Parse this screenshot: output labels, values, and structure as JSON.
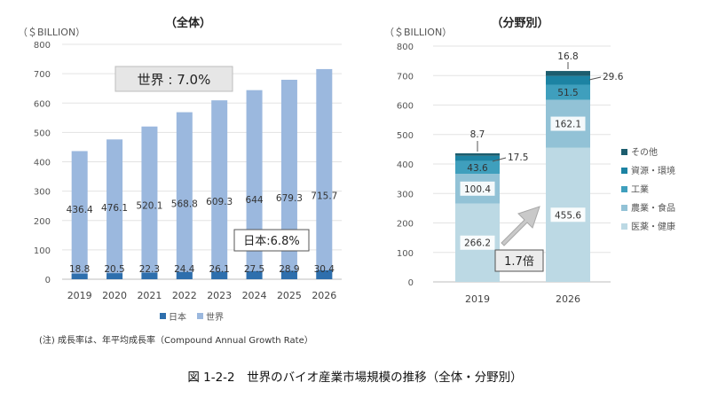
{
  "figure_caption": "図 1-2-2　世界のバイオ産業市場規模の推移（全体・分野別）",
  "note": "(注) 成長率は、年平均成長率（Compound Annual Growth Rate）",
  "colors": {
    "world": "#9bb8de",
    "japan": "#2e6fad",
    "medical": "#bcd9e4",
    "agri_food": "#92c2d6",
    "industrial": "#3f9fbd",
    "resources": "#1c83a3",
    "other": "#1c5d6e"
  },
  "chart_data": [
    {
      "type": "bar",
      "title": "（全体）",
      "ylabel": "（＄BILLION）",
      "ylim": [
        0,
        800
      ],
      "yticks": [
        0,
        100,
        200,
        300,
        400,
        500,
        600,
        700,
        800
      ],
      "categories": [
        "2019",
        "2020",
        "2021",
        "2022",
        "2023",
        "2024",
        "2025",
        "2026"
      ],
      "series": [
        {
          "name": "日本",
          "values": [
            18.8,
            20.5,
            22.3,
            24.4,
            26.1,
            27.5,
            28.9,
            30.4
          ]
        },
        {
          "name": "世界",
          "values": [
            436.4,
            476.1,
            520.1,
            568.8,
            609.3,
            644,
            679.3,
            715.7
          ]
        }
      ],
      "labels": {
        "japan": [
          "18.8",
          "20.5",
          "22.3",
          "24.4",
          "26.1",
          "27.5",
          "28.9",
          "30.4"
        ],
        "world": [
          "436.4",
          "476.1",
          "520.1",
          "568.8",
          "609.3",
          "644",
          "679.3",
          "715.7"
        ]
      },
      "legend": [
        "日本",
        "世界"
      ],
      "legend_position": "bottom",
      "annotations": {
        "world_cagr": "世界 : 7.0%",
        "japan_cagr": "日本:6.8%"
      }
    },
    {
      "type": "bar",
      "stacked": true,
      "title": "（分野別）",
      "ylabel": "（＄BILLION）",
      "ylim": [
        0,
        800
      ],
      "yticks": [
        0,
        100,
        200,
        300,
        400,
        500,
        600,
        700,
        800
      ],
      "categories": [
        "2019",
        "2026"
      ],
      "series": [
        {
          "name": "医薬・健康",
          "values": [
            266.2,
            455.6
          ]
        },
        {
          "name": "農業・食品",
          "values": [
            100.4,
            162.1
          ]
        },
        {
          "name": "工業",
          "values": [
            43.6,
            51.5
          ]
        },
        {
          "name": "資源・環境",
          "values": [
            17.5,
            29.6
          ]
        },
        {
          "name": "その他",
          "values": [
            8.7,
            16.8
          ]
        }
      ],
      "labels": {
        "medical": [
          "266.2",
          "455.6"
        ],
        "agri_food": [
          "100.4",
          "162.1"
        ],
        "industrial": [
          "43.6",
          "51.5"
        ],
        "resources": [
          "17.5",
          "29.6"
        ],
        "other": [
          "8.7",
          "16.8"
        ]
      },
      "legend": [
        "その他",
        "資源・環境",
        "工業",
        "農業・食品",
        "医薬・健康"
      ],
      "legend_position": "right",
      "annotations": {
        "growth": "1.7倍"
      }
    }
  ]
}
